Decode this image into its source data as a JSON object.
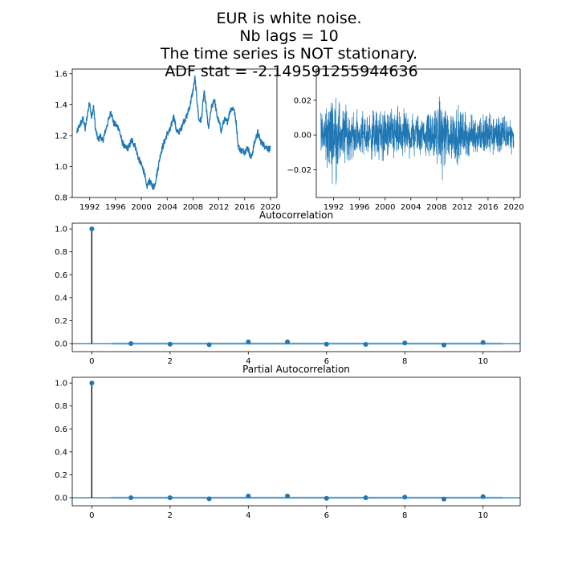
{
  "figure": {
    "title_lines": [
      "EUR is white noise.",
      "Nb lags = 10",
      "The time series is NOT stationary.",
      "ADF stat = -2.149591255944636"
    ]
  },
  "chart_data": [
    {
      "id": "price",
      "type": "line",
      "title": "",
      "xlabel": "",
      "ylabel": "",
      "x_ticks": [
        "1992",
        "1996",
        "2000",
        "2004",
        "2008",
        "2012",
        "2016",
        "2020"
      ],
      "y_ticks": [
        "0.8",
        "1.0",
        "1.2",
        "1.4",
        "1.6"
      ],
      "xlim": [
        1989.3,
        2021.0
      ],
      "ylim": [
        0.8,
        1.63
      ],
      "color": "#1f77b4",
      "series": [
        {
          "x": [
            1990.0,
            1990.5,
            1991.0,
            1991.3,
            1991.7,
            1992.0,
            1992.3,
            1992.6,
            1992.9,
            1993.3,
            1993.7,
            1994.0,
            1994.5,
            1995.0,
            1995.3,
            1995.7,
            1996.0,
            1996.5,
            1997.0,
            1997.5,
            1998.0,
            1998.5,
            1999.0,
            1999.5,
            2000.0,
            2000.5,
            2000.8,
            2001.2,
            2001.6,
            2002.0,
            2002.5,
            2003.0,
            2003.5,
            2004.0,
            2004.5,
            2005.0,
            2005.5,
            2006.0,
            2006.5,
            2007.0,
            2007.5,
            2008.0,
            2008.3,
            2008.6,
            2008.9,
            2009.3,
            2009.7,
            2010.0,
            2010.4,
            2010.8,
            2011.3,
            2011.7,
            2012.0,
            2012.4,
            2012.8,
            2013.3,
            2013.8,
            2014.3,
            2014.7,
            2015.0,
            2015.5,
            2016.0,
            2016.5,
            2017.0,
            2017.5,
            2018.0,
            2018.5,
            2019.0,
            2019.5,
            2020.0
          ],
          "y": [
            1.22,
            1.27,
            1.31,
            1.24,
            1.35,
            1.42,
            1.31,
            1.39,
            1.24,
            1.17,
            1.2,
            1.16,
            1.24,
            1.31,
            1.36,
            1.28,
            1.27,
            1.25,
            1.16,
            1.12,
            1.12,
            1.17,
            1.14,
            1.06,
            1.01,
            0.96,
            0.86,
            0.91,
            0.88,
            0.87,
            0.97,
            1.09,
            1.15,
            1.21,
            1.24,
            1.33,
            1.22,
            1.23,
            1.29,
            1.32,
            1.39,
            1.49,
            1.57,
            1.44,
            1.3,
            1.3,
            1.48,
            1.4,
            1.24,
            1.37,
            1.44,
            1.33,
            1.29,
            1.23,
            1.3,
            1.29,
            1.37,
            1.38,
            1.28,
            1.13,
            1.1,
            1.1,
            1.12,
            1.05,
            1.15,
            1.22,
            1.16,
            1.14,
            1.12,
            1.11
          ]
        }
      ]
    },
    {
      "id": "returns",
      "type": "line",
      "title": "",
      "xlabel": "",
      "ylabel": "",
      "x_ticks": [
        "1992",
        "1996",
        "2000",
        "2004",
        "2008",
        "2012",
        "2016",
        "2020"
      ],
      "y_ticks": [
        "−0.02",
        "0.00",
        "0.02"
      ],
      "xlim": [
        1989.3,
        2021.0
      ],
      "ylim": [
        -0.036,
        0.038
      ],
      "color": "#1f77b4",
      "series": [
        {
          "x_range": [
            1990.0,
            2020.0
          ],
          "envelope_x": [
            1990,
            1992,
            1994,
            1996,
            1998,
            2000,
            2002,
            2004,
            2006,
            2008,
            2009,
            2010,
            2012,
            2014,
            2016,
            2018,
            2020
          ],
          "envelope_amplitude": [
            0.02,
            0.034,
            0.021,
            0.017,
            0.02,
            0.022,
            0.02,
            0.018,
            0.015,
            0.022,
            0.03,
            0.024,
            0.02,
            0.015,
            0.018,
            0.016,
            0.014
          ]
        }
      ]
    },
    {
      "id": "acf",
      "type": "stem",
      "title": "Autocorrelation",
      "xlabel": "",
      "ylabel": "",
      "x_ticks": [
        "0",
        "2",
        "4",
        "6",
        "8",
        "10"
      ],
      "y_ticks": [
        "0.0",
        "0.2",
        "0.4",
        "0.6",
        "0.8",
        "1.0"
      ],
      "xlim": [
        -0.5,
        10.95
      ],
      "ylim": [
        -0.07,
        1.05
      ],
      "lags": [
        0,
        1,
        2,
        3,
        4,
        5,
        6,
        7,
        8,
        9,
        10
      ],
      "values": [
        1.0,
        0.0,
        -0.005,
        -0.01,
        0.015,
        0.015,
        -0.005,
        -0.007,
        0.005,
        -0.012,
        0.01
      ],
      "confidence_band": 0.01,
      "color": "#1f77b4"
    },
    {
      "id": "pacf",
      "type": "stem",
      "title": "Partial Autocorrelation",
      "xlabel": "",
      "ylabel": "",
      "x_ticks": [
        "0",
        "2",
        "4",
        "6",
        "8",
        "10"
      ],
      "y_ticks": [
        "0.0",
        "0.2",
        "0.4",
        "0.6",
        "0.8",
        "1.0"
      ],
      "xlim": [
        -0.5,
        10.95
      ],
      "ylim": [
        -0.07,
        1.05
      ],
      "lags": [
        0,
        1,
        2,
        3,
        4,
        5,
        6,
        7,
        8,
        9,
        10
      ],
      "values": [
        1.0,
        0.0,
        0.0,
        -0.01,
        0.015,
        0.015,
        -0.005,
        0.0,
        0.005,
        -0.012,
        0.01
      ],
      "confidence_band": 0.01,
      "color": "#1f77b4"
    }
  ]
}
